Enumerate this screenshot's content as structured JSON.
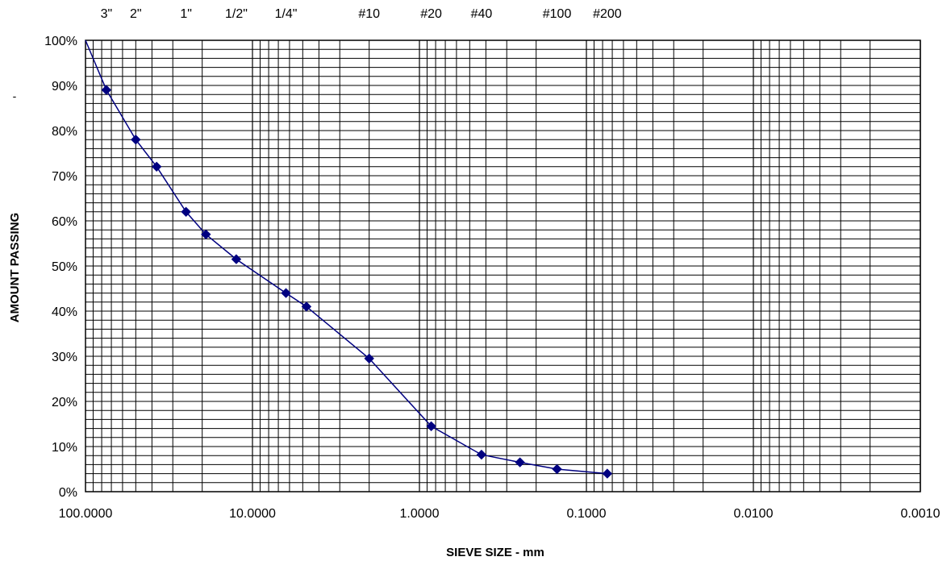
{
  "chart_data": {
    "type": "line",
    "title": "",
    "xlabel": "SIEVE SIZE - mm",
    "ylabel": "AMOUNT PASSING",
    "x_scale": "log",
    "x_reversed": true,
    "xlim": [
      100,
      0.001
    ],
    "ylim": [
      0,
      100
    ],
    "grid": true,
    "legend": "none",
    "x_tick_labels": [
      "100.0000",
      "10.0000",
      "1.0000",
      "0.1000",
      "0.0100",
      "0.0010"
    ],
    "x_ticks": [
      100,
      10,
      1,
      0.1,
      0.01,
      0.001
    ],
    "y_tick_labels": [
      "0%",
      "10%",
      "20%",
      "30%",
      "40%",
      "50%",
      "60%",
      "70%",
      "80%",
      "90%",
      "100%"
    ],
    "y_ticks": [
      0,
      10,
      20,
      30,
      40,
      50,
      60,
      70,
      80,
      90,
      100
    ],
    "sieve_labels": [
      {
        "label": "3\"",
        "size": 75
      },
      {
        "label": "2\"",
        "size": 50
      },
      {
        "label": "1\"",
        "size": 25
      },
      {
        "label": "1/2\"",
        "size": 12.5
      },
      {
        "label": "1/4\"",
        "size": 6.3
      },
      {
        "label": "#10",
        "size": 2
      },
      {
        "label": "#20",
        "size": 0.85
      },
      {
        "label": "#40",
        "size": 0.425
      },
      {
        "label": "#100",
        "size": 0.15
      },
      {
        "label": "#200",
        "size": 0.075
      }
    ],
    "series": [
      {
        "color": "#000080",
        "marker": "diamond",
        "curve_start": {
          "x": 100,
          "y": 100
        },
        "points": [
          {
            "x": 75,
            "y": 89
          },
          {
            "x": 50,
            "y": 78
          },
          {
            "x": 37.5,
            "y": 72
          },
          {
            "x": 25,
            "y": 62
          },
          {
            "x": 19,
            "y": 57
          },
          {
            "x": 12.5,
            "y": 51.5
          },
          {
            "x": 6.3,
            "y": 44
          },
          {
            "x": 4.75,
            "y": 41
          },
          {
            "x": 2,
            "y": 29.5
          },
          {
            "x": 0.85,
            "y": 14.5
          },
          {
            "x": 0.425,
            "y": 8.2
          },
          {
            "x": 0.25,
            "y": 6.5
          },
          {
            "x": 0.15,
            "y": 5
          },
          {
            "x": 0.075,
            "y": 4
          }
        ]
      }
    ]
  },
  "stray_mark": "-"
}
